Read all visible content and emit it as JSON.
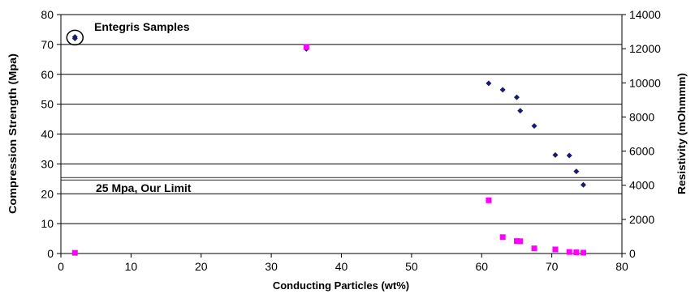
{
  "chart_data": {
    "type": "scatter",
    "xlabel": "Conducting Particles (wt%)",
    "ylabel": "Compression Strength (Mpa)",
    "y2label": "Resistivity (mOhmmm)",
    "xlim": [
      0,
      80
    ],
    "ylim": [
      0,
      80
    ],
    "y2lim": [
      0,
      14000
    ],
    "xticks": [
      "0",
      "10",
      "20",
      "30",
      "40",
      "50",
      "60",
      "70",
      "80"
    ],
    "yticks": [
      "0",
      "10",
      "20",
      "30",
      "40",
      "50",
      "60",
      "70",
      "80"
    ],
    "y2ticks": [
      "0",
      "2000",
      "4000",
      "6000",
      "8000",
      "10000",
      "12000",
      "14000"
    ],
    "grid": true,
    "colors": {
      "compression": "#1a1a6e",
      "resistivity": "#ff00ff",
      "limit": "#555555"
    },
    "series": [
      {
        "axis": "left",
        "marker": "diamond",
        "points": [
          [
            2,
            72.5
          ],
          [
            2,
            72
          ],
          [
            35,
            68.5
          ],
          [
            61,
            57
          ],
          [
            63,
            54.8
          ],
          [
            65,
            52.3
          ],
          [
            65.5,
            47.8
          ],
          [
            67.5,
            42.7
          ],
          [
            70.5,
            33
          ],
          [
            72.5,
            32.8
          ],
          [
            73.5,
            27.5
          ],
          [
            74.5,
            23
          ]
        ]
      },
      {
        "axis": "right",
        "marker": "square",
        "points": [
          [
            2,
            40
          ],
          [
            35,
            12100
          ],
          [
            61,
            3120
          ],
          [
            63,
            960
          ],
          [
            65,
            730
          ],
          [
            65.5,
            720
          ],
          [
            67.5,
            300
          ],
          [
            70.5,
            240
          ],
          [
            72.5,
            90
          ],
          [
            73.5,
            70
          ],
          [
            74.5,
            50
          ]
        ]
      }
    ],
    "reference_line": {
      "y": 25,
      "label": "25 Mpa, Our Limit"
    },
    "annotation": {
      "text": "Entegris Samples",
      "target": [
        2,
        72.3
      ]
    }
  }
}
